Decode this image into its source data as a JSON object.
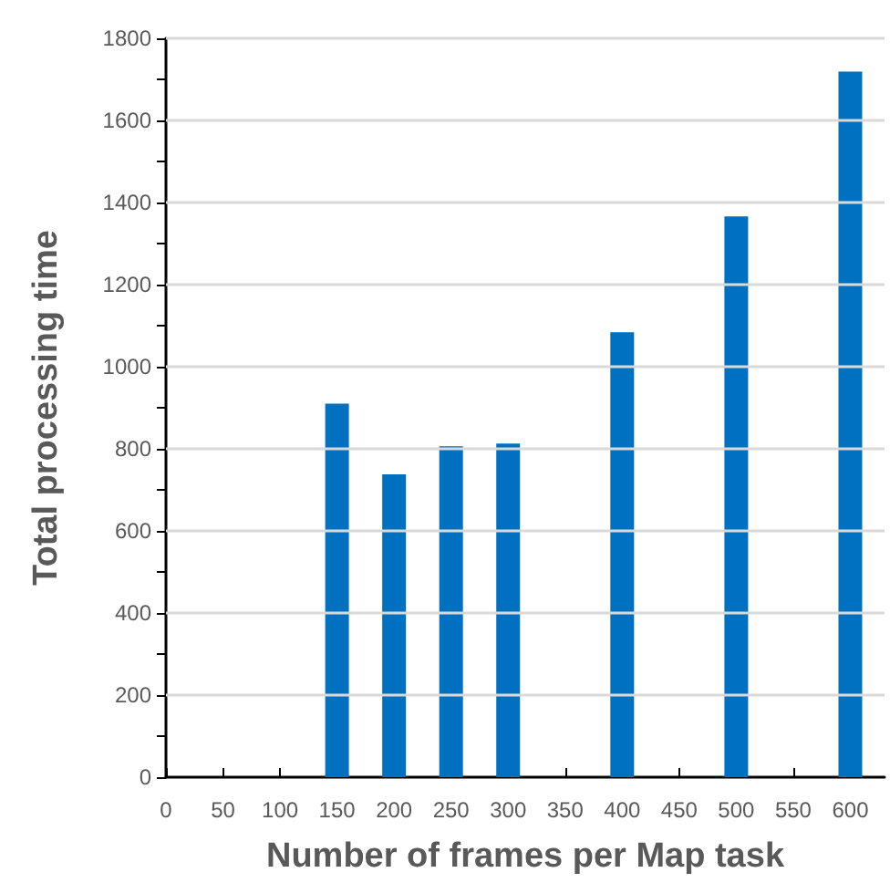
{
  "chart_data": {
    "type": "bar",
    "xlabel": "Number of frames per Map task",
    "ylabel": "Total processing time",
    "x": [
      150,
      200,
      250,
      300,
      400,
      500,
      600
    ],
    "values": [
      910,
      738,
      806,
      813,
      1084,
      1366,
      1719
    ],
    "color": "#0070c0",
    "xlim": [
      0,
      630
    ],
    "xticks": [
      0,
      50,
      100,
      150,
      200,
      250,
      300,
      350,
      400,
      450,
      500,
      550,
      600
    ],
    "ylim": [
      0,
      1800
    ],
    "yticks": [
      0,
      {
        "value": 100,
        "label": null
      },
      200,
      {
        "value": 300,
        "label": null
      },
      400,
      {
        "value": 500,
        "label": null
      },
      600,
      {
        "value": 700,
        "label": null
      },
      800,
      {
        "value": 900,
        "label": null
      },
      1000,
      {
        "value": 1100,
        "label": null
      },
      1200,
      {
        "value": 1300,
        "label": null
      },
      1400,
      {
        "value": 1500,
        "label": null
      },
      1600,
      {
        "value": 1700,
        "label": null
      },
      1800
    ],
    "grid": "y"
  }
}
